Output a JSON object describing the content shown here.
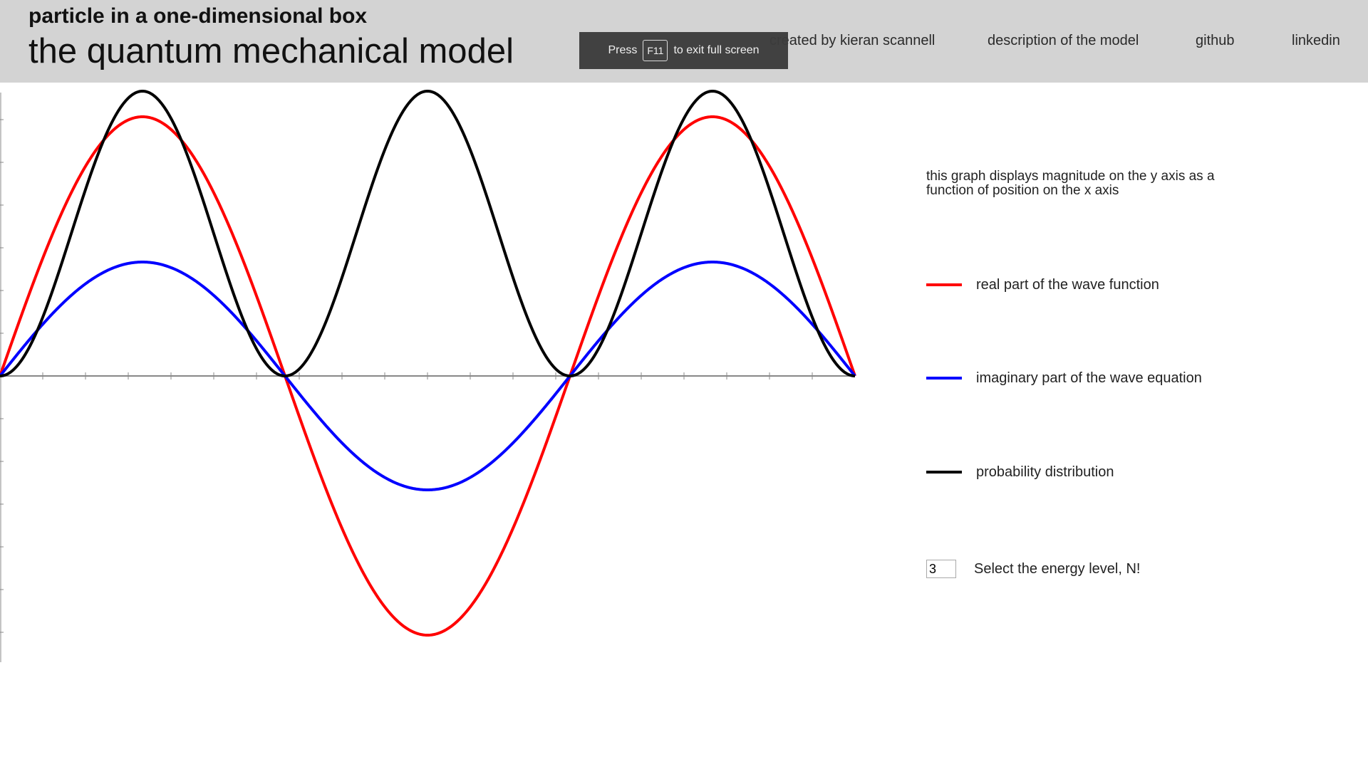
{
  "header": {
    "subtitle": "particle in a one-dimensional box",
    "title": "the quantum mechanical model",
    "nav": [
      {
        "label": "created by kieran scannell"
      },
      {
        "label": "description of the model"
      },
      {
        "label": "github"
      },
      {
        "label": "linkedin"
      }
    ]
  },
  "fullscreen_notice": {
    "prefix": "Press",
    "key": "F11",
    "suffix": "to exit full screen"
  },
  "sidebar": {
    "description": "this graph displays magnitude on the y axis as a function of position on the x axis",
    "legend": [
      {
        "label": "real part of the wave function",
        "color": "#ff0000"
      },
      {
        "label": "imaginary part of the wave equation",
        "color": "#0000ff"
      },
      {
        "label": "probability distribution",
        "color": "#000000"
      }
    ],
    "energy_level": {
      "value": "3",
      "label": "Select the energy level, N!"
    }
  },
  "chart_data": {
    "type": "line",
    "x_range": [
      0,
      1
    ],
    "y_range": [
      -1,
      1
    ],
    "energy_level": 3,
    "series": [
      {
        "name": "real part of the wave function",
        "color": "#ff0000",
        "function": "0.91*sin(3*pi*x)"
      },
      {
        "name": "imaginary part of the wave equation",
        "color": "#0000ff",
        "function": "0.40*sin(3*pi*x)"
      },
      {
        "name": "probability distribution",
        "color": "#000000",
        "function": "sin(3*pi*x)^2"
      }
    ]
  }
}
